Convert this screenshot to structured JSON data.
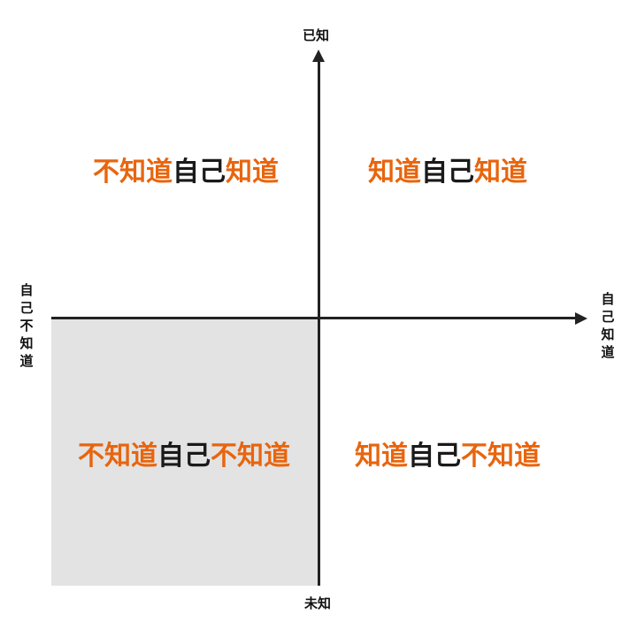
{
  "colors": {
    "accent": "#e8650e",
    "text": "#1a1a1a",
    "axis": "#222222",
    "shade": "#e3e3e3"
  },
  "axes": {
    "top": "已知",
    "bottom": "未知",
    "left": "自己不知道",
    "right": "自己知道"
  },
  "quadrants": {
    "top_left": {
      "prefix": "不知道",
      "middle": "自己",
      "suffix": "知道"
    },
    "top_right": {
      "prefix": "知道",
      "middle": "自己",
      "suffix": "知道"
    },
    "bottom_left": {
      "prefix": "不知道",
      "middle": "自己",
      "suffix": "不知道"
    },
    "bottom_right": {
      "prefix": "知道",
      "middle": "自己",
      "suffix": "不知道"
    }
  }
}
